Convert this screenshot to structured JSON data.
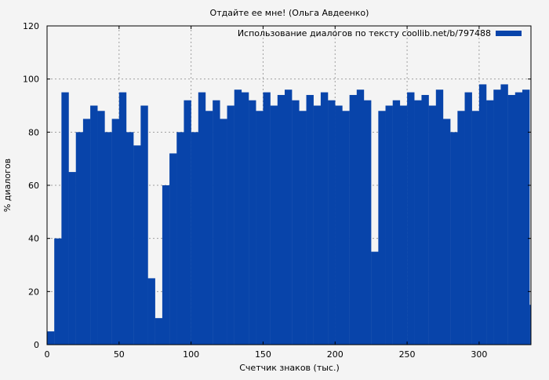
{
  "chart_data": {
    "type": "bar",
    "title": "Отдайте ее мне! (Ольга Авдеенко)",
    "xlabel": "Счетчик знаков (тыс.)",
    "ylabel": "% диалогов",
    "xlim": [
      0,
      336
    ],
    "ylim": [
      0,
      120
    ],
    "xticks": [
      "0",
      "50",
      "100",
      "150",
      "200",
      "250",
      "300"
    ],
    "yticks": [
      "0",
      "20",
      "40",
      "60",
      "80",
      "100",
      "120"
    ],
    "grid": true,
    "legend_position": "top-right",
    "series": [
      {
        "name": "Использование диалогов по тексту coollib.net/b/797488",
        "color": "#0844aa",
        "x": [
          0,
          5,
          10,
          15,
          20,
          25,
          30,
          35,
          40,
          45,
          50,
          55,
          60,
          65,
          70,
          75,
          80,
          85,
          90,
          95,
          100,
          105,
          110,
          115,
          120,
          125,
          130,
          135,
          140,
          145,
          150,
          155,
          160,
          165,
          170,
          175,
          180,
          185,
          190,
          195,
          200,
          205,
          210,
          215,
          220,
          225,
          230,
          235,
          240,
          245,
          250,
          255,
          260,
          265,
          270,
          275,
          280,
          285,
          290,
          295,
          300,
          305,
          310,
          315,
          320,
          325,
          330,
          335
        ],
        "values": [
          5,
          40,
          95,
          65,
          80,
          85,
          90,
          88,
          80,
          85,
          95,
          80,
          75,
          90,
          25,
          10,
          60,
          72,
          80,
          92,
          80,
          95,
          88,
          92,
          85,
          90,
          96,
          95,
          92,
          88,
          95,
          90,
          94,
          96,
          92,
          88,
          94,
          90,
          95,
          92,
          90,
          88,
          94,
          96,
          92,
          35,
          88,
          90,
          92,
          90,
          95,
          92,
          94,
          90,
          96,
          85,
          80,
          88,
          95,
          88,
          98,
          92,
          96,
          98,
          94,
          95,
          96,
          15
        ]
      }
    ]
  }
}
